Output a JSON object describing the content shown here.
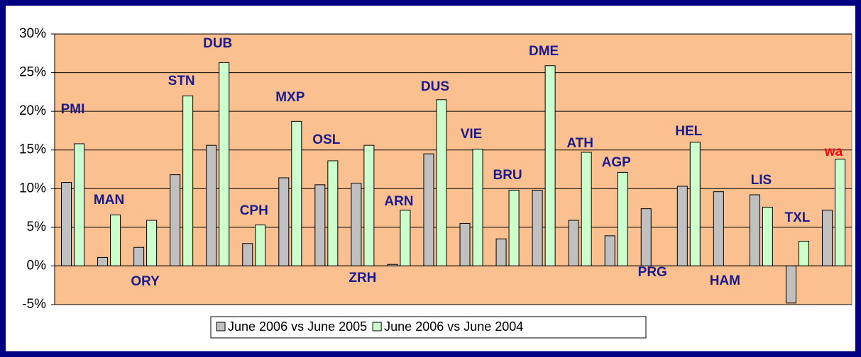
{
  "chart_data": {
    "type": "bar",
    "categories": [
      "PMI",
      "MAN",
      "ORY",
      "STN",
      "DUB",
      "CPH",
      "MXP",
      "OSL",
      "ZRH",
      "ARN",
      "DUS",
      "VIE",
      "BRU",
      "DME",
      "ATH",
      "AGP",
      "PRG",
      "HEL",
      "HAM",
      "LIS",
      "TXL",
      "wa"
    ],
    "category_label_colors": [
      "#1a1a8c",
      "#1a1a8c",
      "#1a1a8c",
      "#1a1a8c",
      "#1a1a8c",
      "#1a1a8c",
      "#1a1a8c",
      "#1a1a8c",
      "#1a1a8c",
      "#1a1a8c",
      "#1a1a8c",
      "#1a1a8c",
      "#1a1a8c",
      "#1a1a8c",
      "#1a1a8c",
      "#1a1a8c",
      "#1a1a8c",
      "#1a1a8c",
      "#1a1a8c",
      "#1a1a8c",
      "#1a1a8c",
      "#ff0000"
    ],
    "series": [
      {
        "name": "June 2006 vs June 2005",
        "color": "#c0c0c0",
        "values": [
          10.8,
          1.1,
          2.4,
          11.8,
          15.6,
          2.9,
          11.4,
          10.5,
          10.7,
          0.2,
          14.5,
          5.5,
          3.5,
          9.8,
          5.9,
          3.9,
          7.4,
          10.3,
          9.6,
          9.2,
          -4.8,
          7.2
        ]
      },
      {
        "name": "June 2006 vs June 2004",
        "color": "#ccffcc",
        "values": [
          15.8,
          6.6,
          5.9,
          22.0,
          26.3,
          5.3,
          18.7,
          13.6,
          15.6,
          7.2,
          21.5,
          15.1,
          9.8,
          25.9,
          14.7,
          12.1,
          null,
          16.0,
          null,
          7.6,
          3.2,
          13.8
        ]
      }
    ],
    "ylim": [
      -5,
      30
    ],
    "yticks": [
      {
        "value": -5,
        "label": "-5%"
      },
      {
        "value": 0,
        "label": "0%"
      },
      {
        "value": 5,
        "label": "5%"
      },
      {
        "value": 10,
        "label": "10%"
      },
      {
        "value": 15,
        "label": "15%"
      },
      {
        "value": 20,
        "label": "20%"
      },
      {
        "value": 25,
        "label": "25%"
      },
      {
        "value": 30,
        "label": "30%"
      }
    ],
    "grid": true,
    "plot_background": "#fac090",
    "legend": "bottom"
  }
}
